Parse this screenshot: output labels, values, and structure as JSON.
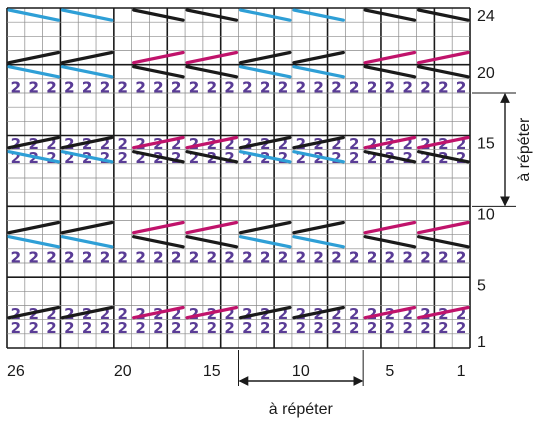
{
  "chart_data": {
    "type": "knitting-chart",
    "columns": 26,
    "rows": 24,
    "column_labels": [
      "26",
      "20",
      "15",
      "10",
      "5",
      "1"
    ],
    "column_label_values": [
      26,
      20,
      15,
      10,
      5,
      1
    ],
    "row_labels": [
      "24",
      "20",
      "15",
      "10",
      "5",
      "1"
    ],
    "row_label_values": [
      24,
      20,
      15,
      10,
      5,
      1
    ],
    "cell_symbol": "2",
    "symbol_rows": [
      2,
      3,
      7,
      8,
      14,
      15,
      19,
      20
    ],
    "strokes": [
      {
        "row": 3,
        "direction": "up",
        "colors": [
          "black",
          "black",
          "pink",
          "pink",
          "black",
          "black",
          "pink",
          "pink"
        ]
      },
      {
        "row": 8,
        "direction": "down",
        "colors": [
          "blue",
          "blue",
          "black",
          "black",
          "blue",
          "blue",
          "black",
          "black"
        ]
      },
      {
        "row": 15,
        "direction": "up",
        "colors": [
          "black",
          "black",
          "pink",
          "pink",
          "black",
          "black",
          "pink",
          "pink"
        ]
      },
      {
        "row": 20,
        "direction": "down",
        "colors": [
          "blue",
          "blue",
          "black",
          "black",
          "blue",
          "blue",
          "black",
          "black"
        ]
      },
      {
        "row": 9,
        "direction": "up",
        "colors": [
          "black",
          "black",
          "pink",
          "pink",
          "black",
          "black",
          "pink",
          "pink"
        ]
      },
      {
        "row": 14,
        "direction": "down",
        "colors": [
          "blue",
          "blue",
          "black",
          "black",
          "blue",
          "blue",
          "black",
          "black"
        ]
      },
      {
        "row": 21,
        "direction": "up",
        "colors": [
          "black",
          "black",
          "pink",
          "pink",
          "black",
          "black",
          "pink",
          "pink"
        ]
      },
      {
        "row": 24,
        "direction": "down",
        "colors": [
          "blue",
          "blue",
          "black",
          "black",
          "blue",
          "blue",
          "black",
          "black"
        ]
      }
    ],
    "repeat_columns": [
      7,
      13
    ],
    "repeat_rows": [
      11,
      18
    ],
    "repeat_label": "à répéter",
    "colors": {
      "blue": "#2e9fd6",
      "pink": "#c0136b",
      "black": "#1a1a1a",
      "symbol": "#5a3c96",
      "grid": "#8a8a8a"
    }
  }
}
